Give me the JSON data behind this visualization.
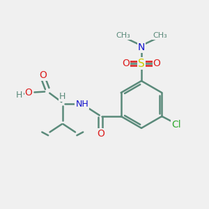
{
  "bg_color": "#f0f0f0",
  "bond_color": "#5a8a7a",
  "bond_width": 1.8,
  "atom_colors": {
    "C": "#5a8a7a",
    "O": "#dd2222",
    "N": "#1111cc",
    "S": "#cccc00",
    "Cl": "#33aa33",
    "H": "#5a8a7a"
  },
  "font_size": 9,
  "fig_size": [
    3.0,
    3.0
  ],
  "dpi": 100,
  "xlim": [
    0,
    10
  ],
  "ylim": [
    0,
    10
  ]
}
